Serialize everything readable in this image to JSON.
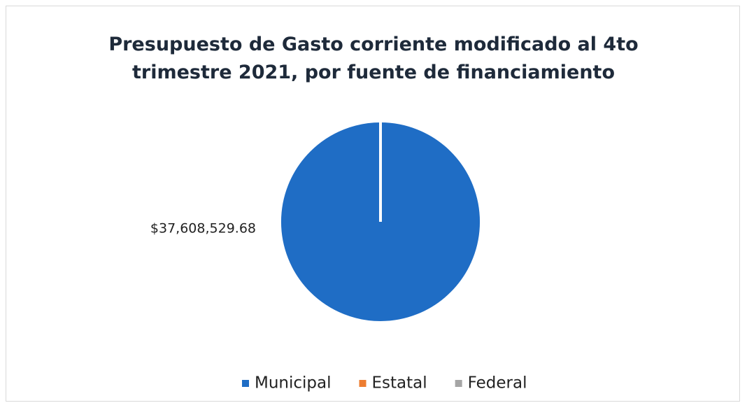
{
  "chart_data": {
    "type": "pie",
    "title": "Presupuesto de Gasto corriente modificado al 4to\ntrimestre 2021, por fuente de financiamiento",
    "categories": [
      "Municipal",
      "Estatal",
      "Federal"
    ],
    "values": [
      37608529.68,
      0,
      0
    ],
    "value_labels": [
      "$37,608,529.68",
      null,
      null
    ],
    "colors": [
      "#1f6dc5",
      "#ed7d31",
      "#a5a5a5"
    ],
    "legend": "bottom"
  }
}
